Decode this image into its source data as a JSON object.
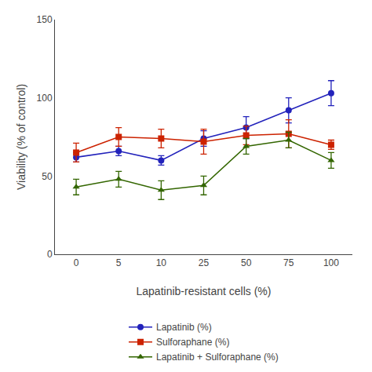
{
  "chart_data": {
    "type": "line",
    "categories": [
      "0",
      "5",
      "10",
      "25",
      "50",
      "75",
      "100"
    ],
    "series": [
      {
        "name": "Lapatinib (%)",
        "color": "#2222bb",
        "marker": "circle",
        "values": [
          62,
          66,
          60,
          74,
          81,
          92,
          103
        ],
        "errors": [
          3,
          3,
          3,
          5,
          7,
          8,
          8
        ]
      },
      {
        "name": "Sulforaphane (%)",
        "color": "#cc2200",
        "marker": "square",
        "values": [
          65,
          75,
          74,
          72,
          76,
          77,
          70
        ],
        "errors": [
          6,
          6,
          6,
          8,
          6,
          9,
          3
        ]
      },
      {
        "name": "Lapatinib + Sulforaphane (%)",
        "color": "#336600",
        "marker": "triangle-up",
        "values": [
          43,
          48,
          41,
          44,
          69,
          73,
          60
        ],
        "errors": [
          5,
          5,
          6,
          6,
          5,
          5,
          5
        ]
      }
    ],
    "xlabel": "Lapatinib-resistant cells (%)",
    "ylabel": "Viability (% of control)",
    "ylim": [
      0,
      150
    ],
    "yticks": [
      0,
      50,
      100,
      150
    ],
    "grid": false,
    "legend": "bottom"
  }
}
